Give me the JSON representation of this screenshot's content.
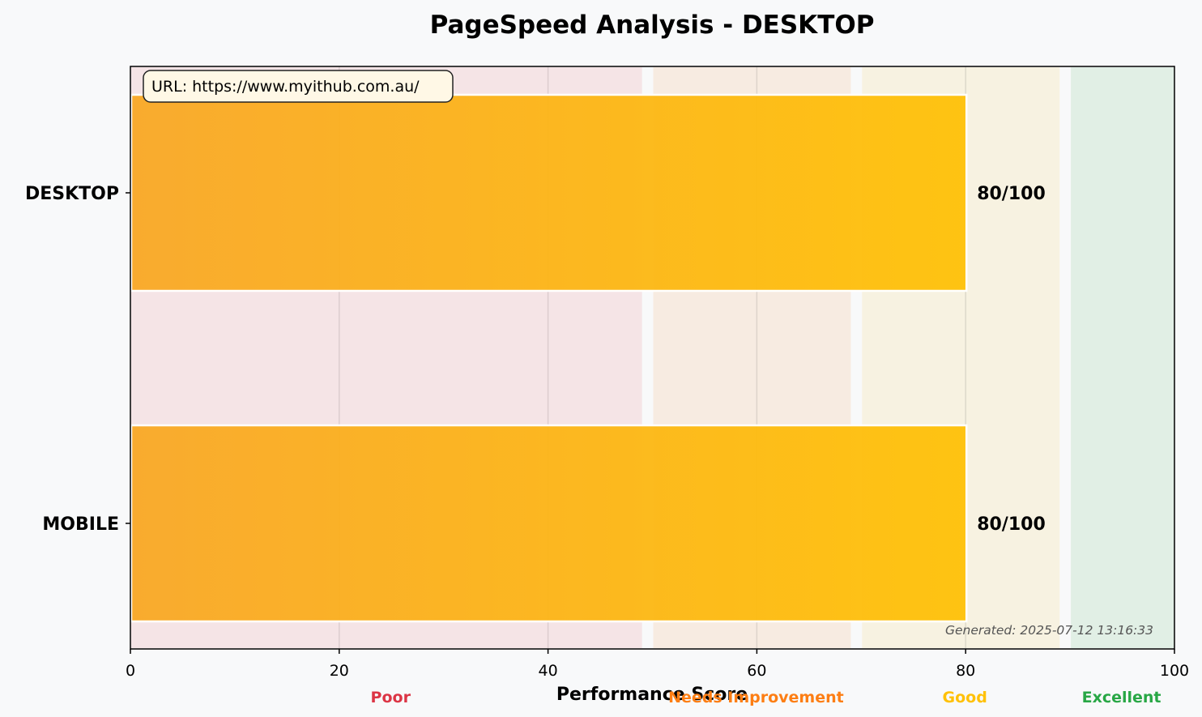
{
  "chart_data": {
    "type": "bar",
    "orientation": "horizontal",
    "title": "PageSpeed Analysis - DESKTOP",
    "xlabel": "Performance Score",
    "ylabel": "",
    "xlim": [
      0,
      100
    ],
    "xticks": [
      0,
      20,
      40,
      60,
      80,
      100
    ],
    "categories": [
      "DESKTOP",
      "MOBILE"
    ],
    "values": [
      80,
      80
    ],
    "value_labels": [
      "80/100",
      "80/100"
    ],
    "bar_color_start": "#f9a825",
    "bar_color_end": "#ffc107",
    "zones": [
      {
        "label": "Poor",
        "from": 0,
        "to": 49,
        "color": "#f5e4e6",
        "label_color": "#dc3545"
      },
      {
        "label": "Needs Improvement",
        "from": 50,
        "to": 69,
        "color": "#f7ebe1",
        "label_color": "#fd7e14"
      },
      {
        "label": "Good",
        "from": 70,
        "to": 89,
        "color": "#f7f2e1",
        "label_color": "#ffc107"
      },
      {
        "label": "Excellent",
        "from": 90,
        "to": 100,
        "color": "#e1efe5",
        "label_color": "#28a745"
      }
    ],
    "url_box": "URL: https://www.myithub.com.au/",
    "generated": "Generated: 2025-07-12 13:16:33",
    "grid": true
  }
}
